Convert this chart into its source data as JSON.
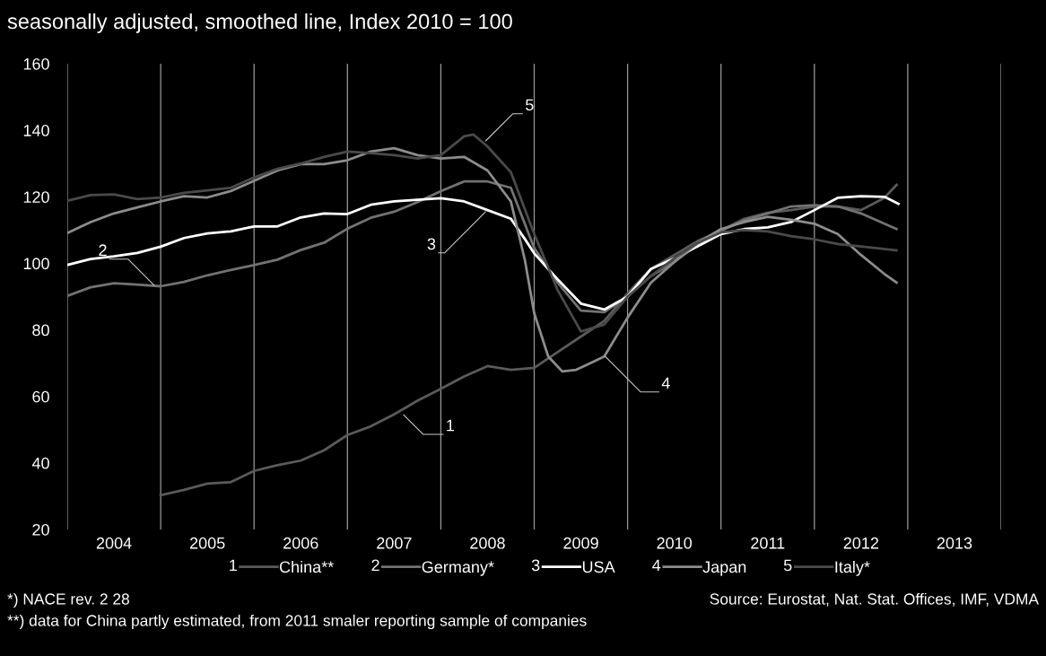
{
  "chart_data": {
    "type": "line",
    "title": "seasonally adjusted, smoothed line, Index 2010 = 100",
    "xlim": [
      2004,
      2014
    ],
    "ylim": [
      20,
      160
    ],
    "yticks": [
      20,
      40,
      60,
      80,
      100,
      120,
      140,
      160
    ],
    "xticks": [
      {
        "value": 2004,
        "label": null
      },
      {
        "value": 2004.5,
        "label": "2004"
      },
      {
        "value": 2005,
        "label": null
      },
      {
        "value": 2005.5,
        "label": "2005"
      },
      {
        "value": 2006,
        "label": null
      },
      {
        "value": 2006.5,
        "label": "2006"
      },
      {
        "value": 2007,
        "label": null
      },
      {
        "value": 2007.5,
        "label": "2007"
      },
      {
        "value": 2008,
        "label": null
      },
      {
        "value": 2008.5,
        "label": "2008"
      },
      {
        "value": 2009,
        "label": null
      },
      {
        "value": 2009.5,
        "label": "2009"
      },
      {
        "value": 2010,
        "label": null
      },
      {
        "value": 2010.5,
        "label": "2010"
      },
      {
        "value": 2011,
        "label": null
      },
      {
        "value": 2011.5,
        "label": "2011"
      },
      {
        "value": 2012,
        "label": null
      },
      {
        "value": 2012.5,
        "label": "2012"
      },
      {
        "value": 2013,
        "label": null
      },
      {
        "value": 2013.5,
        "label": "2013"
      },
      {
        "value": 2014,
        "label": null
      }
    ],
    "grid": "x",
    "legend": "bottom",
    "series": [
      {
        "name": "China**",
        "color": "#5a5a5a",
        "x": [
          2005,
          2005.25,
          2005.5,
          2005.75,
          2006,
          2006.25,
          2006.5,
          2006.75,
          2007,
          2007.25,
          2007.5,
          2007.75,
          2008,
          2008.25,
          2008.5,
          2008.75,
          2009,
          2009.25,
          2009.5,
          2009.75,
          2010,
          2010.25,
          2010.5,
          2010.75,
          2011,
          2011.25,
          2011.5,
          2011.75,
          2012,
          2012.25,
          2012.5,
          2012.75,
          2012.88
        ],
        "values": [
          30.3,
          31.9,
          33.8,
          34.2,
          37.6,
          39.3,
          40.7,
          43.8,
          48.4,
          51,
          54.6,
          58.7,
          62.3,
          66,
          69.1,
          68,
          68.6,
          73.3,
          78,
          82.7,
          91,
          98.3,
          102.5,
          106.7,
          109.8,
          113.4,
          115.2,
          116,
          117.1,
          117.1,
          116,
          119.7,
          123.6
        ]
      },
      {
        "name": "Germany*",
        "color": "#727272",
        "x": [
          2004,
          2004.25,
          2004.5,
          2004.75,
          2005,
          2005.25,
          2005.5,
          2005.75,
          2006,
          2006.25,
          2006.5,
          2006.75,
          2007,
          2007.25,
          2007.5,
          2007.75,
          2008,
          2008.25,
          2008.5,
          2008.75,
          2009,
          2009.25,
          2009.5,
          2009.75,
          2010,
          2010.25,
          2010.5,
          2010.75,
          2011,
          2011.25,
          2011.5,
          2011.75,
          2012,
          2012.25,
          2012.5,
          2012.75,
          2012.88
        ],
        "values": [
          90.2,
          92.8,
          94,
          93.6,
          93.1,
          94.4,
          96.4,
          98,
          99.5,
          101.1,
          104,
          106.2,
          110.4,
          113.7,
          115.5,
          118.4,
          121.7,
          124.6,
          124.6,
          122.7,
          104.6,
          94.2,
          85.8,
          85.3,
          90,
          96.2,
          100.4,
          105.6,
          109.8,
          112.9,
          115,
          117.1,
          117.5,
          117.1,
          115,
          111.9,
          110.3
        ]
      },
      {
        "name": "USA",
        "color": "#ffffff",
        "x": [
          2004,
          2004.25,
          2004.5,
          2004.75,
          2005,
          2005.25,
          2005.5,
          2005.75,
          2006,
          2006.25,
          2006.5,
          2006.75,
          2007,
          2007.25,
          2007.5,
          2007.75,
          2008,
          2008.25,
          2008.5,
          2008.75,
          2008.9,
          2009,
          2009.25,
          2009.5,
          2009.75,
          2010,
          2010.25,
          2010.5,
          2010.75,
          2011,
          2011.25,
          2011.5,
          2011.75,
          2012,
          2012.25,
          2012.5,
          2012.75,
          2012.9
        ],
        "values": [
          99.5,
          101.3,
          102.1,
          103.1,
          105,
          107.6,
          109,
          109.6,
          111.1,
          111.1,
          113.8,
          115,
          114.8,
          117.6,
          118.6,
          119.1,
          119.6,
          118.6,
          116,
          113.4,
          107.3,
          103,
          95.2,
          87.9,
          86.1,
          90,
          98.3,
          101.5,
          105.1,
          108.8,
          110.3,
          110.8,
          112.4,
          116,
          119.7,
          120.2,
          120,
          117.9
        ]
      },
      {
        "name": "Japan",
        "color": "#8c8c8c",
        "x": [
          2004,
          2004.25,
          2004.5,
          2004.75,
          2005,
          2005.25,
          2005.5,
          2005.75,
          2006,
          2006.25,
          2006.5,
          2006.75,
          2007,
          2007.25,
          2007.5,
          2007.75,
          2008,
          2008.25,
          2008.5,
          2008.75,
          2008.9,
          2009,
          2009.15,
          2009.3,
          2009.45,
          2009.6,
          2009.75,
          2010,
          2010.25,
          2010.5,
          2010.75,
          2011,
          2011.25,
          2011.5,
          2011.75,
          2012,
          2012.25,
          2012.5,
          2012.75,
          2012.88
        ],
        "values": [
          109.1,
          112.4,
          115,
          116.8,
          118.6,
          120.2,
          119.8,
          121.7,
          124.8,
          127.9,
          129.8,
          129.8,
          131,
          133.6,
          134.6,
          132.5,
          131.5,
          132,
          127.9,
          118.6,
          101,
          85,
          72,
          67.5,
          68,
          70,
          72,
          83.7,
          94.2,
          100.4,
          106.1,
          110.3,
          112.4,
          114,
          113.1,
          111.9,
          108.8,
          102.5,
          96.8,
          94.2
        ]
      },
      {
        "name": "Italy*",
        "color": "#4a4a4a",
        "x": [
          2004,
          2004.25,
          2004.5,
          2004.75,
          2005,
          2005.25,
          2005.5,
          2005.75,
          2006,
          2006.25,
          2006.5,
          2006.75,
          2007,
          2007.25,
          2007.5,
          2007.75,
          2008,
          2008.25,
          2008.35,
          2008.5,
          2008.75,
          2009,
          2009.25,
          2009.5,
          2009.75,
          2010,
          2010.25,
          2010.5,
          2010.75,
          2011,
          2011.25,
          2011.5,
          2011.75,
          2012,
          2012.25,
          2012.5,
          2012.88
        ],
        "values": [
          118.8,
          120.5,
          120.7,
          119.3,
          119.8,
          121.2,
          121.9,
          122.7,
          125.8,
          128.4,
          130,
          132,
          133.6,
          133.1,
          132.5,
          131.5,
          132.5,
          138.2,
          138.7,
          135.1,
          127.4,
          108.8,
          92,
          79.5,
          81.6,
          90,
          96.2,
          101.5,
          106.1,
          109.3,
          110,
          109.6,
          108.2,
          107.2,
          105.8,
          105.1,
          103.9
        ]
      }
    ],
    "annotations": [
      {
        "text": "1",
        "x": 2007.6,
        "y": 54.5
      },
      {
        "text": "2",
        "x": 2004.93,
        "y": 93.4
      },
      {
        "text": "3",
        "x": 2008.48,
        "y": 115.5
      },
      {
        "text": "4",
        "x": 2009.76,
        "y": 72
      },
      {
        "text": "5",
        "x": 2008.48,
        "y": 136.8
      },
      "*) NACE rev. 2 28",
      "Source: Eurostat, Nat. Stat. Offices, IMF, VDMA",
      "**) data for China partly estimated, from 2011 smaler reporting sample of companies"
    ]
  }
}
